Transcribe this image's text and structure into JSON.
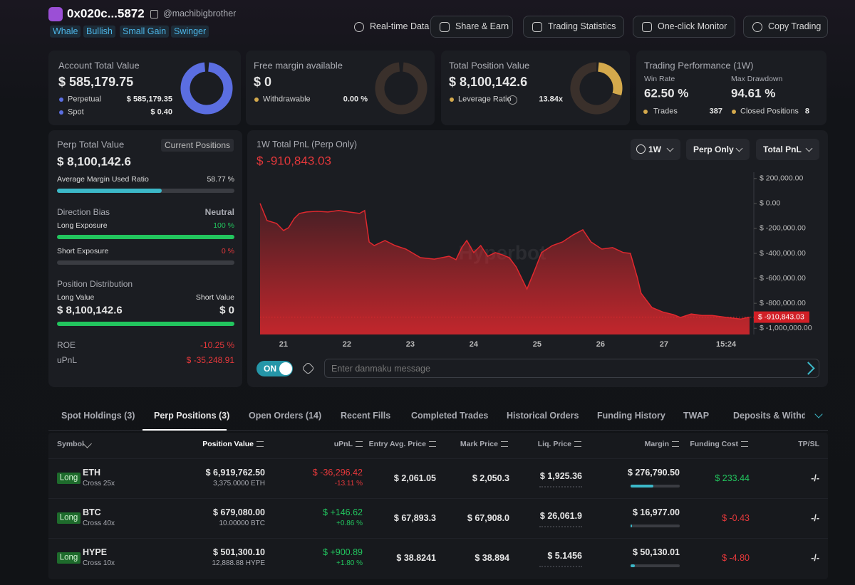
{
  "header": {
    "address": "0x020c...5872",
    "handle": "@machibigbrother",
    "tags": [
      "Whale",
      "Bullish",
      "Small Gain",
      "Swinger"
    ],
    "buttons": [
      "Real-time Data",
      "Share & Earn",
      "Trading Statistics",
      "One-click Monitor",
      "Copy Trading"
    ]
  },
  "summary": {
    "account": {
      "title": "Account Total Value",
      "value": "$ 585,179.75",
      "rows": [
        [
          "Perpetual",
          "$ 585,179.35"
        ],
        [
          "Spot",
          "$ 0.40"
        ]
      ]
    },
    "margin": {
      "title": "Free margin available",
      "value": "$ 0",
      "rows": [
        [
          "Withdrawable",
          "0.00 %"
        ]
      ]
    },
    "position": {
      "title": "Total Position Value",
      "value": "$ 8,100,142.6",
      "rows": [
        [
          "Leverage Ratio",
          "13.84x"
        ]
      ]
    },
    "performance": {
      "title": "Trading Performance (1W)",
      "stats": [
        [
          "Win Rate",
          "62.50 %"
        ],
        [
          "Max Drawdown",
          "94.61 %"
        ]
      ],
      "rows": [
        [
          "Trades",
          "387"
        ],
        [
          "Closed Positions",
          "8"
        ]
      ]
    }
  },
  "perp": {
    "title": "Perp Total Value",
    "badge": "Current Positions",
    "value": "$ 8,100,142.6",
    "margin_label": "Average Margin Used Ratio",
    "margin_value": "58.77 %",
    "bias_label": "Direction Bias",
    "bias": "Neutral",
    "long_label": "Long Exposure",
    "long_value": "100 %",
    "short_label": "Short Exposure",
    "short_value": "0 %",
    "dist_title": "Position Distribution",
    "long_value_label": "Long Value",
    "short_value_label": "Short Value",
    "long_total": "$ 8,100,142.6",
    "short_total": "$ 0",
    "roe_label": "ROE",
    "roe": "-10.25 %",
    "upnl_label": "uPnL",
    "upnl": "$ -35,248.91"
  },
  "chart_data": {
    "type": "line",
    "title": "1W Total PnL (Perp Only)",
    "subtitle": "$ -910,843.03",
    "watermark": "Hyperbot",
    "controls": [
      "1W",
      "Perp Only",
      "Total PnL"
    ],
    "color": "#e0282e",
    "x": [
      20.63,
      20.74,
      20.89,
      21,
      21.08,
      21.17,
      21.25,
      21.36,
      21.53,
      21.7,
      21.87,
      22.03,
      22.2,
      22.28,
      22.35,
      22.43,
      22.6,
      22.76,
      22.93,
      23.16,
      23.38,
      23.61,
      23.72,
      23.81,
      23.89,
      24,
      24.11,
      24.22,
      24.34,
      24.45,
      24.56,
      24.67,
      24.84,
      24.96,
      25.07,
      25.24,
      25.4,
      25.57,
      25.72,
      25.85,
      26.02,
      26.19,
      26.36,
      26.47,
      26.58,
      26.64,
      26.81,
      26.98,
      27.15,
      27.26,
      27.43,
      27.6,
      27.76,
      27.99,
      28.21,
      28.35
    ],
    "values": [
      0,
      -137000,
      -160000,
      -217000,
      -194000,
      -120000,
      -80000,
      -69000,
      -63000,
      -69000,
      -57000,
      -69000,
      -80000,
      -57000,
      -309000,
      -337000,
      -297000,
      -337000,
      -366000,
      -434000,
      -446000,
      -423000,
      -451000,
      -354000,
      -297000,
      -394000,
      -337000,
      -423000,
      -394000,
      -411000,
      -434000,
      -509000,
      -686000,
      -537000,
      -394000,
      -337000,
      -309000,
      -251000,
      -211000,
      -309000,
      -366000,
      -354000,
      -394000,
      -400000,
      -594000,
      -720000,
      -834000,
      -869000,
      -891000,
      -914000,
      -886000,
      -897000,
      -897000,
      -914000,
      -926000,
      -910843
    ],
    "xlim": [
      20.63,
      28.35
    ],
    "xticks": [
      21,
      22,
      23,
      24,
      25,
      26,
      27,
      {
        "value": 27.98,
        "label": "15:24"
      }
    ],
    "ylim": [
      -1050000,
      250000
    ],
    "yticks": [
      {
        "value": 200000,
        "label": "$ 200,000.00"
      },
      {
        "value": 0,
        "label": "$ 0.00"
      },
      {
        "value": -200000,
        "label": "$ -200,000.00"
      },
      {
        "value": -400000,
        "label": "$ -400,000.00"
      },
      {
        "value": -600000,
        "label": "$ -600,000.00"
      },
      {
        "value": -800000,
        "label": "$ -800,000.00"
      },
      {
        "value": -1000000,
        "label": "$ -1,000,000.00"
      }
    ]
  },
  "danmaku": {
    "toggle": "ON",
    "placeholder": "Enter danmaku message"
  },
  "tabs": {
    "items": [
      "Spot Holdings (3)",
      "Perp Positions (3)",
      "Open Orders (14)",
      "Recent Fills",
      "Completed Trades",
      "Historical Orders",
      "Funding History",
      "TWAP",
      "Deposits & Withdra"
    ],
    "active": 1
  },
  "table": {
    "columns": [
      "Symbol",
      "Position Value",
      "uPnL",
      "Entry Avg. Price",
      "Mark Price",
      "Liq. Price",
      "Margin",
      "Funding Cost",
      "TP/SL"
    ],
    "rows": [
      {
        "side": "Long",
        "symbol": "ETH",
        "mode": "Cross 25x",
        "value": "$ 6,919,762.50",
        "size": "3,375.0000 ETH",
        "upnl": "$ -36,296.42",
        "upnl_pct": "-13.11 %",
        "entry": "$ 2,061.05",
        "mark": "$ 2,050.3",
        "liq": "$ 1,925.36",
        "margin": "$ 276,790.50",
        "funding": "$ 233.44",
        "tpsl": "-/-"
      },
      {
        "side": "Long",
        "symbol": "BTC",
        "mode": "Cross 40x",
        "value": "$ 679,080.00",
        "size": "10.00000 BTC",
        "upnl": "$ +146.62",
        "upnl_pct": "+0.86 %",
        "entry": "$ 67,893.3",
        "mark": "$ 67,908.0",
        "liq": "$ 26,061.9",
        "margin": "$ 16,977.00",
        "funding": "$ -0.43",
        "tpsl": "-/-"
      },
      {
        "side": "Long",
        "symbol": "HYPE",
        "mode": "Cross 10x",
        "value": "$ 501,300.10",
        "size": "12,888.88 HYPE",
        "upnl": "$ +900.89",
        "upnl_pct": "+1.80 %",
        "entry": "$ 38.8241",
        "mark": "$ 38.894",
        "liq": "$ 5.1456",
        "margin": "$ 50,130.01",
        "funding": "$ -4.80",
        "tpsl": "-/-"
      }
    ]
  }
}
